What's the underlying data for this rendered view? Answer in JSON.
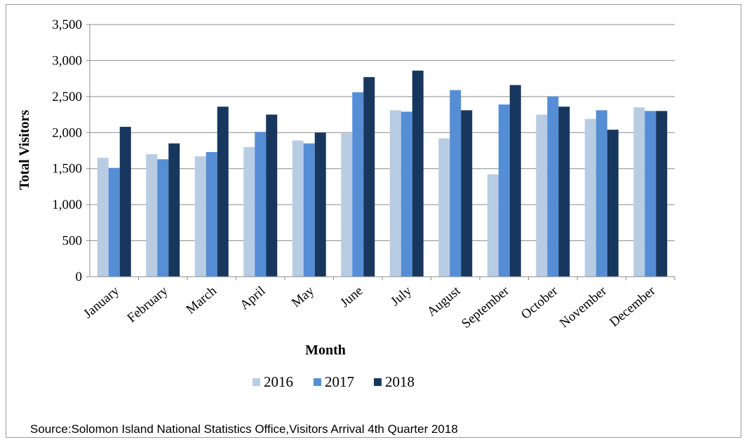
{
  "chart_data": {
    "type": "bar",
    "title": "",
    "xlabel": "Month",
    "ylabel": "Total Visitors",
    "ylim": [
      0,
      3500
    ],
    "yticks": [
      0,
      500,
      1000,
      1500,
      2000,
      2500,
      3000,
      3500
    ],
    "ytick_labels": [
      "0",
      "500",
      "1,000",
      "1,500",
      "2,000",
      "2,500",
      "3,000",
      "3,500"
    ],
    "grid": true,
    "legend_position": "bottom",
    "categories": [
      "January",
      "February",
      "March",
      "April",
      "May",
      "June",
      "July",
      "August",
      "September",
      "October",
      "November",
      "December"
    ],
    "series": [
      {
        "name": "2016",
        "color": "#b8cce4",
        "values": [
          1650,
          1700,
          1670,
          1800,
          1890,
          1990,
          2310,
          1920,
          1420,
          2250,
          2190,
          2350
        ]
      },
      {
        "name": "2017",
        "color": "#558ed5",
        "values": [
          1510,
          1630,
          1730,
          2010,
          1850,
          2560,
          2290,
          2590,
          2390,
          2500,
          2310,
          2300
        ]
      },
      {
        "name": "2018",
        "color": "#17375e",
        "values": [
          2080,
          1850,
          2360,
          2250,
          2000,
          2770,
          2860,
          2310,
          2660,
          2360,
          2040,
          2300
        ]
      }
    ]
  },
  "source_note": "Source:Solomon Island National Statistics Office,Visitors Arrival 4th Quarter 2018"
}
